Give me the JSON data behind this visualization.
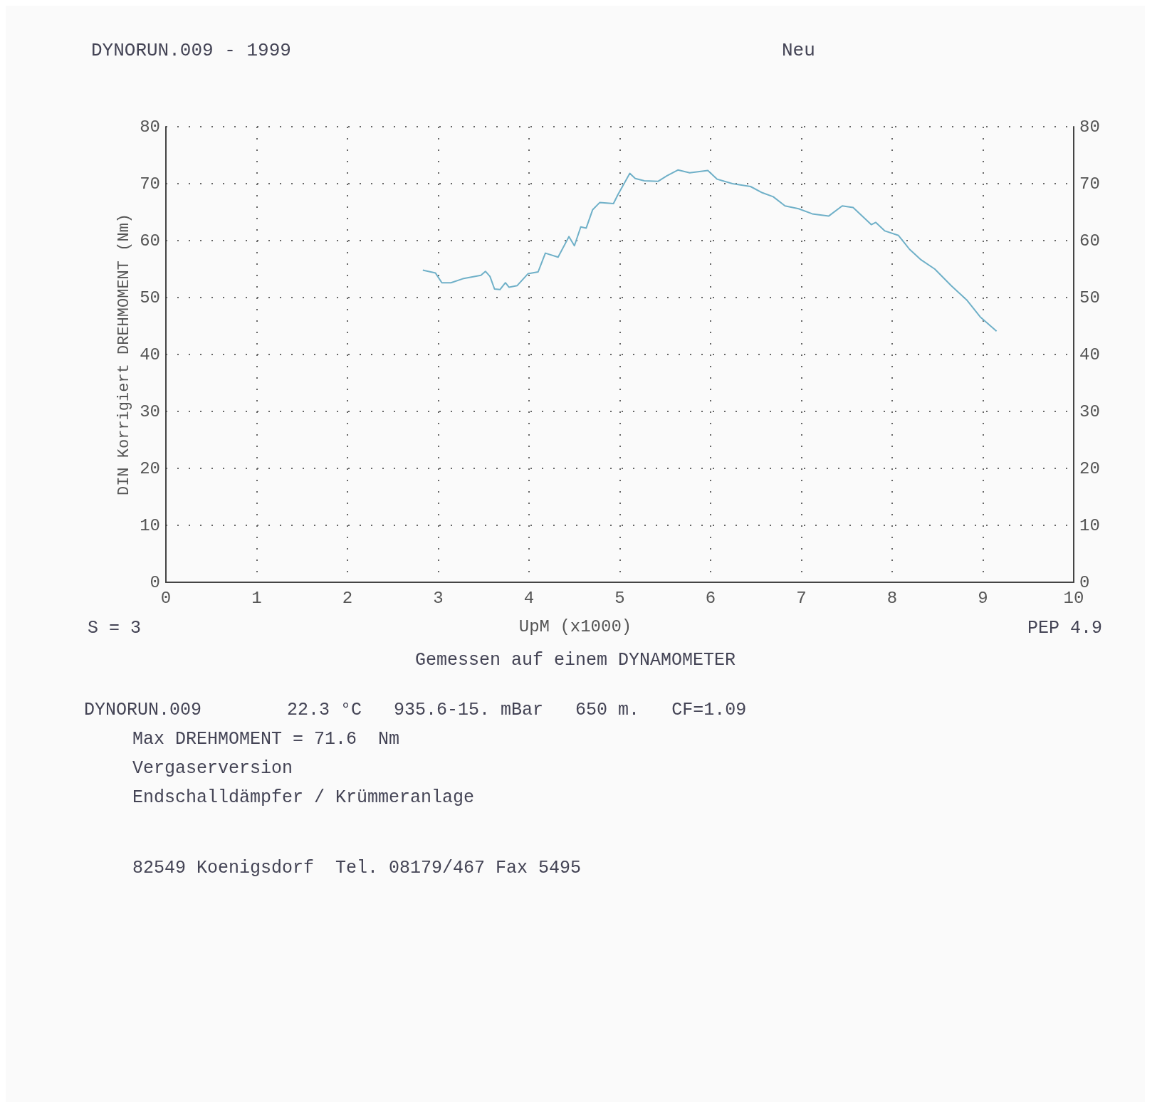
{
  "chart_data": {
    "type": "line",
    "title": "DYNORUN.009 - 1999",
    "subtitle": "Neu",
    "xlabel": "UpM (x1000)",
    "ylabel": "DIN Korrigiert DREHMOMENT (Nm)",
    "x": [
      2.83,
      2.97,
      3.04,
      3.14,
      3.27,
      3.47,
      3.52,
      3.57,
      3.62,
      3.68,
      3.74,
      3.78,
      3.87,
      3.99,
      4.1,
      4.18,
      4.32,
      4.44,
      4.5,
      4.57,
      4.63,
      4.7,
      4.78,
      4.93,
      4.98,
      5.11,
      5.17,
      5.27,
      5.42,
      5.52,
      5.64,
      5.77,
      5.97,
      6.07,
      6.24,
      6.44,
      6.57,
      6.69,
      6.82,
      6.97,
      7.12,
      7.3,
      7.45,
      7.57,
      7.77,
      7.82,
      7.92,
      8.07,
      8.19,
      8.32,
      8.47,
      8.65,
      8.82,
      8.97,
      9.15
    ],
    "series": [
      {
        "color": "#6fb0c8",
        "values": [
          54.8,
          54.3,
          52.6,
          52.6,
          53.3,
          53.9,
          54.6,
          53.7,
          51.5,
          51.4,
          52.6,
          51.8,
          52.1,
          54.2,
          54.5,
          57.8,
          57.1,
          60.7,
          59.1,
          62.4,
          62.2,
          65.4,
          66.7,
          66.5,
          68.1,
          71.8,
          70.9,
          70.5,
          70.4,
          71.4,
          72.4,
          71.9,
          72.3,
          70.8,
          70.0,
          69.5,
          68.4,
          67.7,
          66.1,
          65.6,
          64.7,
          64.3,
          66.1,
          65.8,
          62.8,
          63.2,
          61.7,
          60.9,
          58.5,
          56.6,
          55.0,
          52.1,
          49.6,
          46.6,
          44.1
        ]
      }
    ],
    "xlim": [
      0,
      10
    ],
    "xticks": [
      0,
      1,
      2,
      3,
      4,
      5,
      6,
      7,
      8,
      9,
      10
    ],
    "ylim": [
      0,
      80
    ],
    "yticks": [
      0,
      10,
      20,
      30,
      40,
      50,
      60,
      70,
      80
    ],
    "y2lim": [
      0,
      80
    ],
    "y2ticks": [
      0,
      10,
      20,
      30,
      40,
      50,
      60,
      70,
      80
    ],
    "grid": true,
    "marker": "none",
    "line_style": "solid",
    "annotations": [
      "S = 3",
      "PEP 4.9",
      "Gemessen auf einem DYNAMOMETER",
      "DYNORUN.009        22.3 °C   935.6-15. mBar   650 m.   CF=1.09",
      "Max DREHMOMENT = 71.6  Nm",
      "Vergaserversion",
      "Endschalldämpfer / Krümmeranlage",
      "82549 Koenigsdorf  Tel. 08179/467 Fax 5495"
    ]
  }
}
